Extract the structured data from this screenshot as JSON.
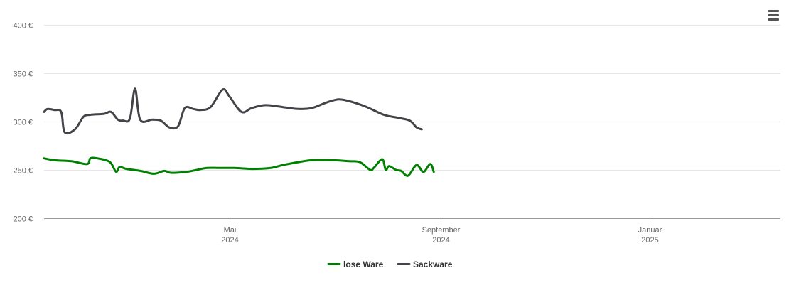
{
  "chart_data": {
    "type": "line",
    "y_axis": {
      "ticks": [
        200,
        250,
        300,
        350,
        400
      ],
      "tick_labels": [
        "200 €",
        "250 €",
        "300 €",
        "350 €",
        "400 €"
      ],
      "ylim": [
        200,
        400
      ]
    },
    "x_axis": {
      "xlim": [
        "2024-01-14",
        "2025-03-18"
      ],
      "ticks": [
        {
          "date": "2024-05-01",
          "month": "Mai",
          "year": "2024"
        },
        {
          "date": "2024-09-01",
          "month": "September",
          "year": "2024"
        },
        {
          "date": "2025-01-01",
          "month": "Januar",
          "year": "2025"
        }
      ]
    },
    "grid": true,
    "legend_position": "bottom-center",
    "series": [
      {
        "name": "lose Ware",
        "color": "#008000",
        "points": [
          [
            "2024-01-14",
            262
          ],
          [
            "2024-01-20",
            260
          ],
          [
            "2024-01-30",
            259
          ],
          [
            "2024-02-08",
            256
          ],
          [
            "2024-02-10",
            262
          ],
          [
            "2024-02-14",
            262
          ],
          [
            "2024-02-19",
            260
          ],
          [
            "2024-02-22",
            257
          ],
          [
            "2024-02-25",
            248
          ],
          [
            "2024-02-27",
            253
          ],
          [
            "2024-03-02",
            251
          ],
          [
            "2024-03-10",
            249
          ],
          [
            "2024-03-18",
            246
          ],
          [
            "2024-03-24",
            249
          ],
          [
            "2024-03-28",
            247
          ],
          [
            "2024-04-06",
            248
          ],
          [
            "2024-04-12",
            250
          ],
          [
            "2024-04-18",
            252
          ],
          [
            "2024-04-25",
            252
          ],
          [
            "2024-05-04",
            252
          ],
          [
            "2024-05-14",
            251
          ],
          [
            "2024-05-25",
            252
          ],
          [
            "2024-06-01",
            255
          ],
          [
            "2024-06-10",
            258
          ],
          [
            "2024-06-18",
            260
          ],
          [
            "2024-06-30",
            260
          ],
          [
            "2024-07-10",
            259
          ],
          [
            "2024-07-16",
            258
          ],
          [
            "2024-07-22",
            250
          ],
          [
            "2024-07-24",
            252
          ],
          [
            "2024-07-29",
            261
          ],
          [
            "2024-07-31",
            250
          ],
          [
            "2024-08-02",
            254
          ],
          [
            "2024-08-06",
            250
          ],
          [
            "2024-08-09",
            249
          ],
          [
            "2024-08-13",
            244
          ],
          [
            "2024-08-18",
            255
          ],
          [
            "2024-08-22",
            248
          ],
          [
            "2024-08-26",
            256
          ],
          [
            "2024-08-28",
            248
          ]
        ]
      },
      {
        "name": "Sackware",
        "color": "#434348",
        "points": [
          [
            "2024-01-14",
            310
          ],
          [
            "2024-01-16",
            313
          ],
          [
            "2024-01-20",
            312
          ],
          [
            "2024-01-24",
            310
          ],
          [
            "2024-01-26",
            289
          ],
          [
            "2024-02-01",
            292
          ],
          [
            "2024-02-06",
            305
          ],
          [
            "2024-02-10",
            307
          ],
          [
            "2024-02-18",
            308
          ],
          [
            "2024-02-22",
            310
          ],
          [
            "2024-02-26",
            302
          ],
          [
            "2024-02-29",
            301
          ],
          [
            "2024-03-04",
            303
          ],
          [
            "2024-03-07",
            334
          ],
          [
            "2024-03-10",
            302
          ],
          [
            "2024-03-17",
            302
          ],
          [
            "2024-03-22",
            301
          ],
          [
            "2024-03-27",
            294
          ],
          [
            "2024-04-01",
            295
          ],
          [
            "2024-04-05",
            314
          ],
          [
            "2024-04-10",
            313
          ],
          [
            "2024-04-14",
            312
          ],
          [
            "2024-04-20",
            315
          ],
          [
            "2024-04-27",
            333
          ],
          [
            "2024-05-01",
            326
          ],
          [
            "2024-05-08",
            310
          ],
          [
            "2024-05-14",
            314
          ],
          [
            "2024-05-22",
            317
          ],
          [
            "2024-06-01",
            315
          ],
          [
            "2024-06-10",
            313
          ],
          [
            "2024-06-18",
            314
          ],
          [
            "2024-06-27",
            320
          ],
          [
            "2024-07-04",
            323
          ],
          [
            "2024-07-12",
            320
          ],
          [
            "2024-07-20",
            315
          ],
          [
            "2024-07-30",
            307
          ],
          [
            "2024-08-07",
            304
          ],
          [
            "2024-08-14",
            301
          ],
          [
            "2024-08-18",
            294
          ],
          [
            "2024-08-21",
            292
          ]
        ]
      }
    ]
  },
  "legend": {
    "items": [
      {
        "label": "lose Ware",
        "color": "#008000"
      },
      {
        "label": "Sackware",
        "color": "#434348"
      }
    ]
  },
  "menu": {
    "icon": "hamburger-menu-icon"
  }
}
